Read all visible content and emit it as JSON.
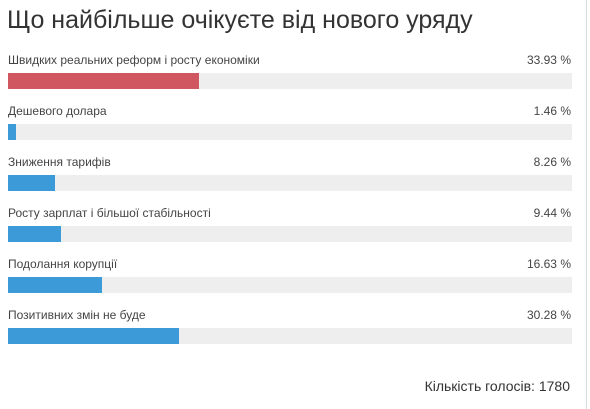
{
  "poll": {
    "title": "Що найбільше очікуєте від нового уряду",
    "options": [
      {
        "label": "Швидких реальних реформ і росту економіки",
        "percent_text": "33.93 %",
        "value": 33.93,
        "color": "#d0575f"
      },
      {
        "label": "Дешевого долара",
        "percent_text": "1.46 %",
        "value": 1.46,
        "color": "#3d9ad9"
      },
      {
        "label": "Зниження тарифів",
        "percent_text": "8.26 %",
        "value": 8.26,
        "color": "#3d9ad9"
      },
      {
        "label": "Росту зарплат і більшої стабільності",
        "percent_text": "9.44 %",
        "value": 9.44,
        "color": "#3d9ad9"
      },
      {
        "label": "Подолання корупції",
        "percent_text": "16.63 %",
        "value": 16.63,
        "color": "#3d9ad9"
      },
      {
        "label": "Позитивних змін не буде",
        "percent_text": "30.28 %",
        "value": 30.28,
        "color": "#3d9ad9"
      }
    ],
    "total_label": "Кількість голосів:",
    "total_count": "1780"
  }
}
